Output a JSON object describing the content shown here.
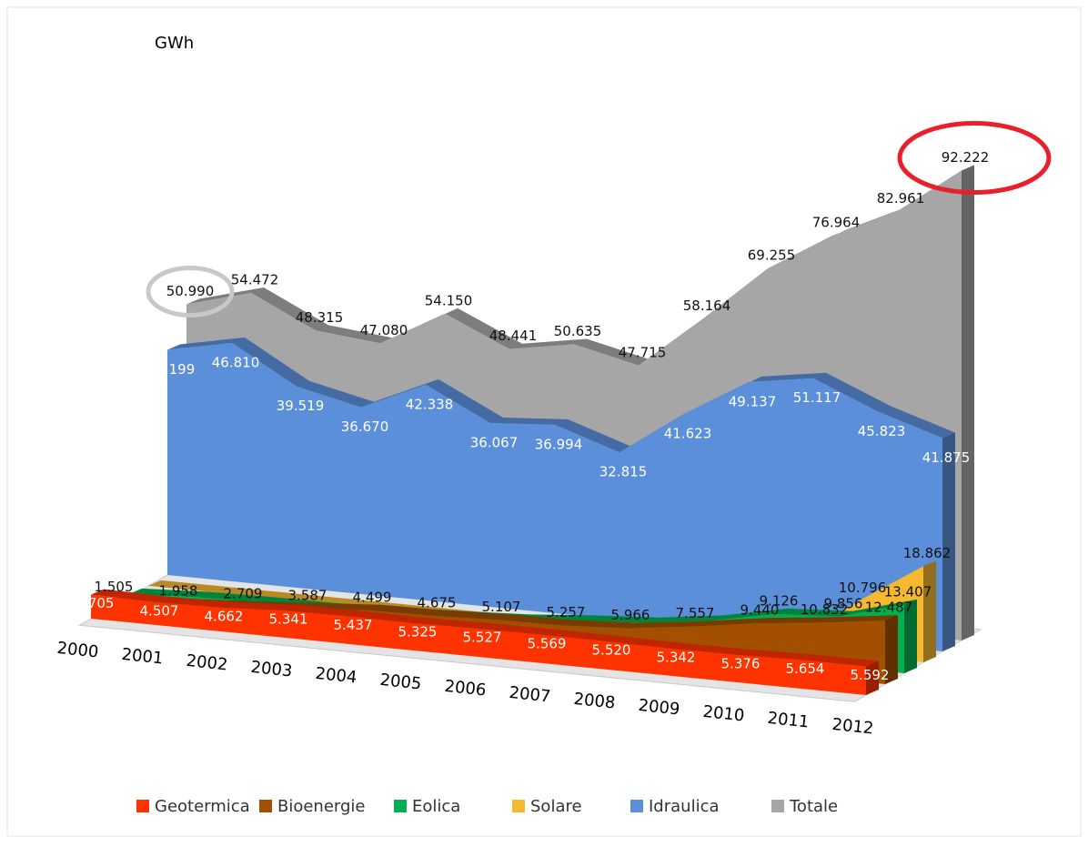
{
  "chart_data": {
    "type": "area3d",
    "unit_label": "GWh",
    "categories": [
      "2000",
      "2001",
      "2002",
      "2003",
      "2004",
      "2005",
      "2006",
      "2007",
      "2008",
      "2009",
      "2010",
      "2011",
      "2012"
    ],
    "series": [
      {
        "name": "Geotermica",
        "color": "#ff3300",
        "values": [
          4.705,
          4.507,
          4.662,
          5.341,
          5.437,
          5.325,
          5.527,
          5.569,
          5.52,
          5.342,
          5.376,
          5.654,
          5.592
        ],
        "value_labels": [
          "4.705",
          "4.507",
          "4.662",
          "5.341",
          "5.437",
          "5.325",
          "5.527",
          "5.569",
          "5.520",
          "5.342",
          "5.376",
          "5.654",
          "5.592"
        ]
      },
      {
        "name": "Bioenergie",
        "color": "#a34f00",
        "values": [
          1.505,
          1.958,
          2.709,
          3.587,
          4.499,
          4.675,
          5.107,
          5.257,
          5.966,
          7.557,
          9.44,
          10.832,
          12.487
        ],
        "value_labels": [
          "1.505",
          "1.958",
          "2.709",
          "3.587",
          "4.499",
          "4.675",
          "5.107",
          "5.257",
          "5.966",
          "7.557",
          "9.440",
          "10.832",
          "12.487"
        ]
      },
      {
        "name": "Eolica",
        "color": "#00b050",
        "values": [
          0.563,
          1.179,
          1.404,
          1.458,
          1.847,
          2.344,
          2.971,
          4.034,
          4.861,
          6.543,
          9.126,
          9.856,
          13.407
        ],
        "value_labels": [
          null,
          null,
          null,
          null,
          null,
          null,
          null,
          null,
          null,
          null,
          "9.126",
          "9.856",
          "13.407"
        ]
      },
      {
        "name": "Solare",
        "color": "#f5b82e",
        "values": [
          0.018,
          0.019,
          0.023,
          0.026,
          0.027,
          0.031,
          0.035,
          0.039,
          0.193,
          0.676,
          1.906,
          10.796,
          18.862
        ],
        "value_labels": [
          null,
          null,
          null,
          null,
          null,
          null,
          null,
          null,
          null,
          null,
          null,
          "10.796",
          "18.862"
        ]
      },
      {
        "name": "Idraulica",
        "color": "#5b8fd9",
        "values": [
          44.199,
          46.81,
          39.519,
          36.67,
          42.338,
          36.067,
          36.994,
          32.815,
          41.623,
          49.137,
          51.117,
          45.823,
          41.875
        ],
        "value_labels": [
          "44.199",
          "46.810",
          "39.519",
          "36.670",
          "42.338",
          "36.067",
          "36.994",
          "32.815",
          "41.623",
          "49.137",
          "51.117",
          "45.823",
          "41.875"
        ]
      },
      {
        "name": "Totale",
        "color": "#a6a6a6",
        "values": [
          50.99,
          54.472,
          48.315,
          47.08,
          54.15,
          48.441,
          50.635,
          47.715,
          58.164,
          69.255,
          76.964,
          82.961,
          92.222
        ],
        "value_labels": [
          "50.990",
          "54.472",
          "48.315",
          "47.080",
          "54.150",
          "48.441",
          "50.635",
          "47.715",
          "58.164",
          "69.255",
          "76.964",
          "82.961",
          "92.222"
        ]
      }
    ]
  }
}
